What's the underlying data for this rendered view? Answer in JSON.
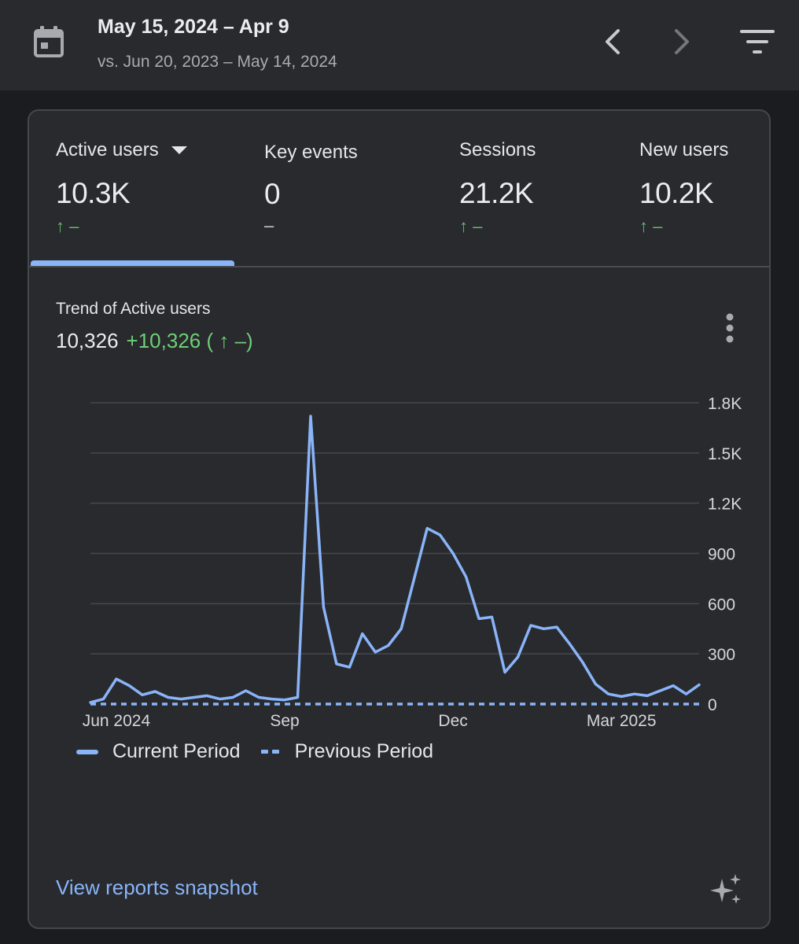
{
  "header": {
    "date_range": "May 15, 2024 – Apr 9",
    "comparison_range": "vs. Jun 20, 2023 – May 14, 2024",
    "icons": [
      "calendar-icon",
      "chevron-left-icon",
      "chevron-right-icon",
      "filter-icon"
    ]
  },
  "metrics": [
    {
      "label": "Active users",
      "value": "10.3K",
      "change": "↑ –",
      "trend": "up",
      "selected": true
    },
    {
      "label": "Key events",
      "value": "0",
      "change": "–",
      "trend": "none",
      "selected": false
    },
    {
      "label": "Sessions",
      "value": "21.2K",
      "change": "↑ –",
      "trend": "up",
      "selected": false
    },
    {
      "label": "New users",
      "value": "10.2K",
      "change": "↑ –",
      "trend": "up",
      "selected": false
    }
  ],
  "trend": {
    "title": "Trend of Active users",
    "value": "10,326",
    "delta": "+10,326 ( ↑ –)"
  },
  "chart_data": {
    "type": "line",
    "title": "Trend of Active users",
    "xlabel": "",
    "ylabel": "",
    "ylim": [
      0,
      1800
    ],
    "y_ticks": [
      "0",
      "300",
      "600",
      "900",
      "1.2K",
      "1.5K",
      "1.8K"
    ],
    "y_tick_values": [
      0,
      300,
      600,
      900,
      1200,
      1500,
      1800
    ],
    "x_ticks": [
      {
        "label": "Jun 2024",
        "week": 2
      },
      {
        "label": "Sep",
        "week": 15
      },
      {
        "label": "Dec",
        "week": 28
      },
      {
        "label": "Mar 2025",
        "week": 41
      }
    ],
    "x_range": [
      0,
      47
    ],
    "series": [
      {
        "name": "Current Period",
        "style": "solid",
        "color": "#8ab4f8",
        "values": [
          10,
          30,
          150,
          110,
          55,
          75,
          40,
          30,
          40,
          50,
          30,
          40,
          80,
          40,
          30,
          25,
          40,
          1720,
          580,
          240,
          220,
          420,
          310,
          350,
          450,
          750,
          1050,
          1010,
          900,
          760,
          510,
          520,
          190,
          280,
          470,
          450,
          460,
          360,
          250,
          120,
          60,
          45,
          60,
          50,
          80,
          110,
          60,
          115
        ]
      },
      {
        "name": "Previous Period",
        "style": "dashed",
        "color": "#8ab4f8",
        "values": [
          0,
          0,
          0,
          0,
          0,
          0,
          0,
          0,
          0,
          0,
          0,
          0,
          0,
          0,
          0,
          0,
          0,
          0,
          0,
          0,
          0,
          0,
          0,
          0,
          0,
          0,
          0,
          0,
          0,
          0,
          0,
          0,
          0,
          0,
          0,
          0,
          0,
          0,
          0,
          0,
          0,
          0,
          0,
          0,
          0,
          0,
          0,
          0
        ]
      }
    ]
  },
  "legend": {
    "current": "Current Period",
    "previous": "Previous Period"
  },
  "footer": {
    "link": "View reports snapshot"
  },
  "colors": {
    "accent": "#8ab4f8",
    "positive": "#66bb6a",
    "background": "#1b1c1f",
    "card": "#282a2e"
  }
}
